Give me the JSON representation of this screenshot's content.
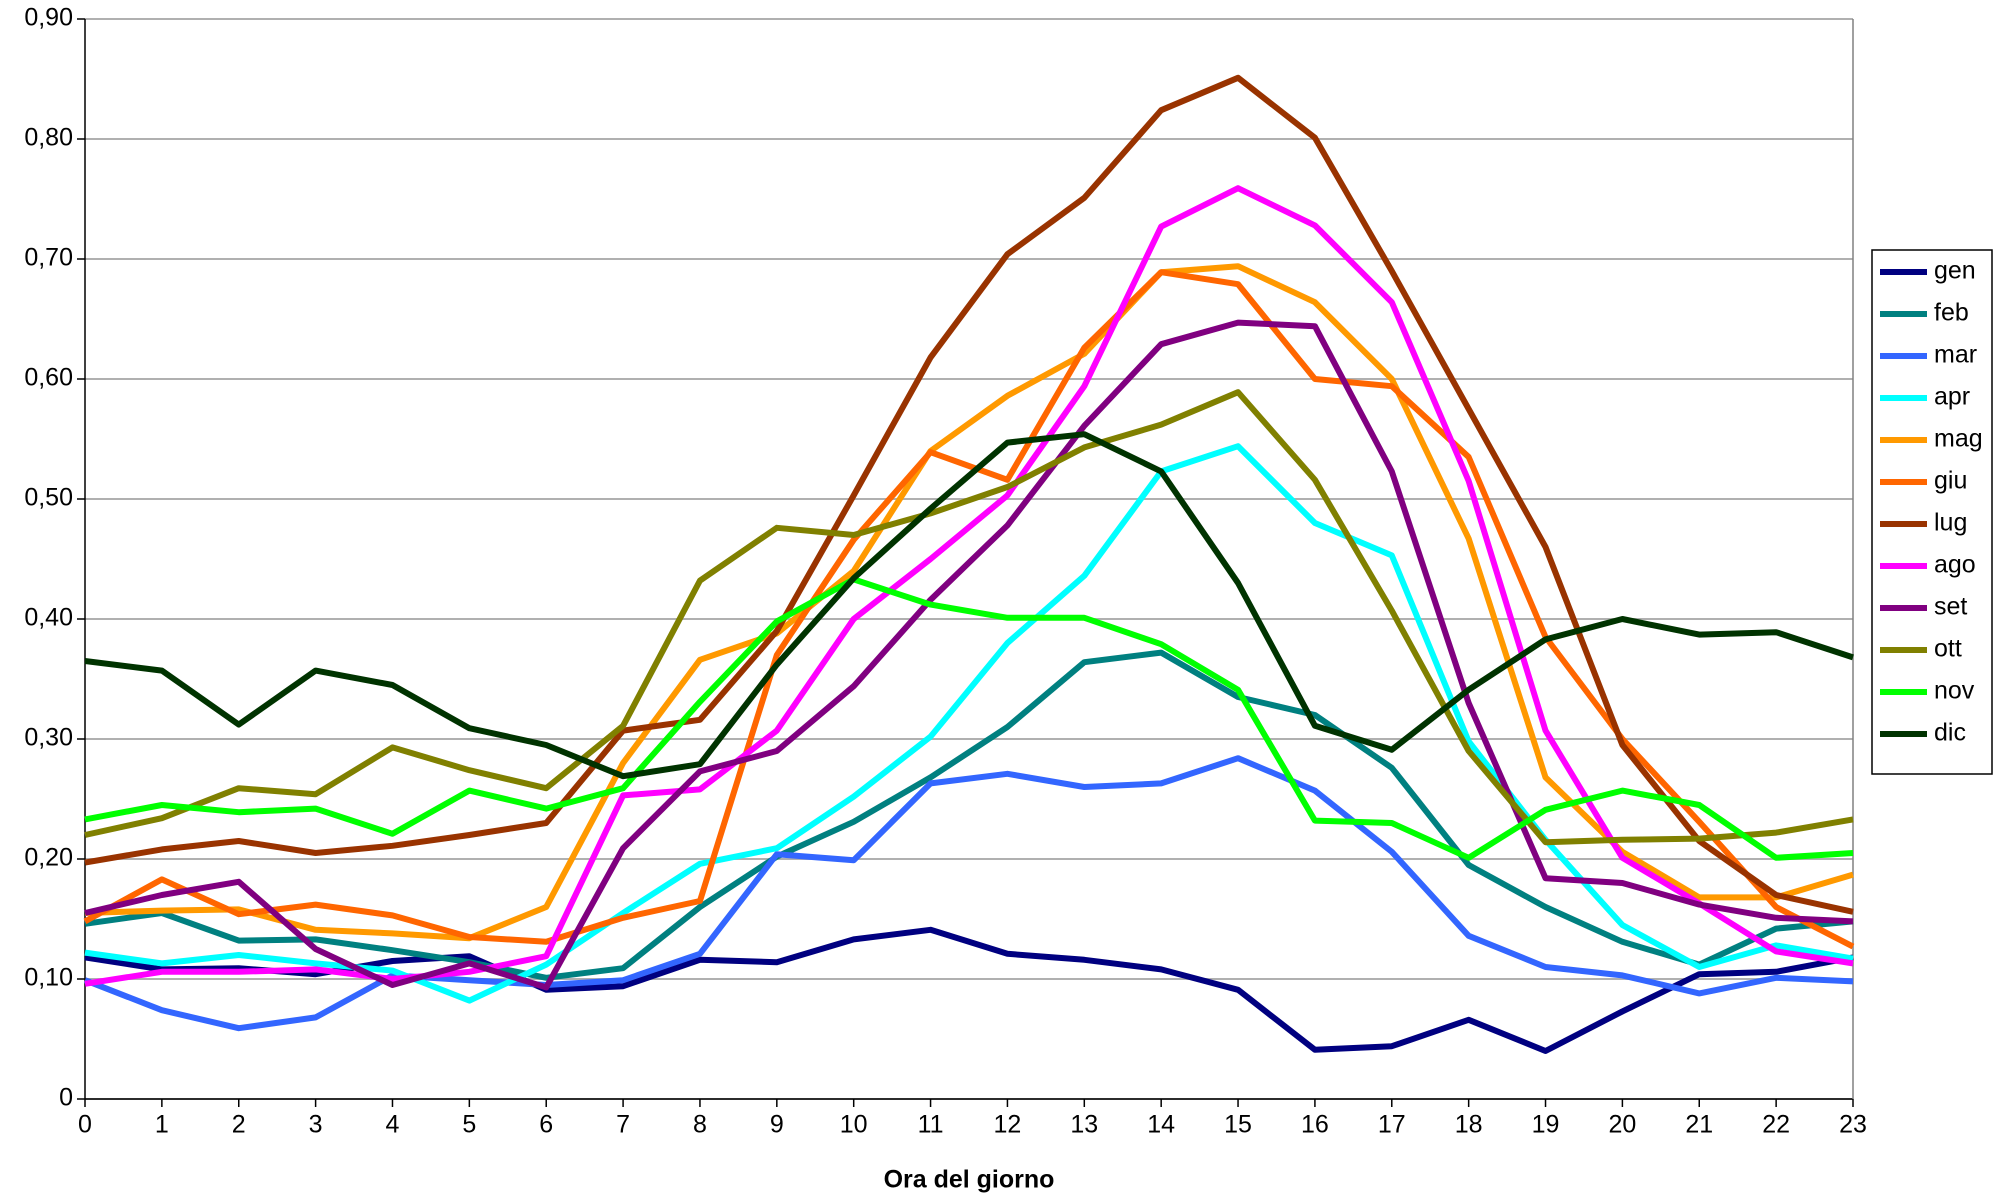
{
  "chart_data": {
    "type": "line",
    "x_label": "Ora del giorno",
    "x": [
      0,
      1,
      2,
      3,
      4,
      5,
      6,
      7,
      8,
      9,
      10,
      11,
      12,
      13,
      14,
      15,
      16,
      17,
      18,
      19,
      20,
      21,
      22,
      23
    ],
    "xlim": [
      0,
      23
    ],
    "xticks": [
      0,
      1,
      2,
      3,
      4,
      5,
      6,
      7,
      8,
      9,
      10,
      11,
      12,
      13,
      14,
      15,
      16,
      17,
      18,
      19,
      20,
      21,
      22,
      23
    ],
    "ylim": [
      0,
      0.9
    ],
    "yticks": [
      0,
      {
        "value": 0.1,
        "label": "0,10"
      },
      {
        "value": 0.2,
        "label": "0,20"
      },
      {
        "value": 0.3,
        "label": "0,30"
      },
      {
        "value": 0.4,
        "label": "0,40"
      },
      {
        "value": 0.5,
        "label": "0,50"
      },
      {
        "value": 0.6,
        "label": "0,60"
      },
      {
        "value": 0.7,
        "label": "0,70"
      },
      {
        "value": 0.8,
        "label": "0,80"
      },
      {
        "value": 0.9,
        "label": "0,90"
      }
    ],
    "grid": true,
    "legend": "right",
    "series": [
      {
        "name": "gen",
        "color": "#000080",
        "values": [
          0.118,
          0.108,
          0.109,
          0.104,
          0.115,
          0.119,
          0.091,
          0.094,
          0.116,
          0.114,
          0.133,
          0.141,
          0.121,
          0.116,
          0.108,
          0.091,
          0.041,
          0.044,
          0.066,
          0.04,
          0.073,
          0.104,
          0.106,
          0.118
        ]
      },
      {
        "name": "feb",
        "color": "#008080",
        "values": [
          0.146,
          0.155,
          0.132,
          0.133,
          0.124,
          0.114,
          0.101,
          0.109,
          0.16,
          0.202,
          0.231,
          0.268,
          0.31,
          0.364,
          0.372,
          0.335,
          0.32,
          0.276,
          0.195,
          0.16,
          0.131,
          0.112,
          0.142,
          0.148
        ]
      },
      {
        "name": "mar",
        "color": "#3366ff",
        "values": [
          0.099,
          0.074,
          0.059,
          0.068,
          0.103,
          0.099,
          0.095,
          0.099,
          0.121,
          0.204,
          0.199,
          0.263,
          0.271,
          0.26,
          0.263,
          0.284,
          0.257,
          0.206,
          0.136,
          0.11,
          0.103,
          0.088,
          0.101,
          0.098
        ]
      },
      {
        "name": "apr",
        "color": "#00ffff",
        "values": [
          0.122,
          0.113,
          0.12,
          0.113,
          0.107,
          0.082,
          0.112,
          0.155,
          0.196,
          0.209,
          0.252,
          0.302,
          0.38,
          0.436,
          0.523,
          0.544,
          0.48,
          0.453,
          0.298,
          0.216,
          0.145,
          0.11,
          0.128,
          0.117
        ]
      },
      {
        "name": "mag",
        "color": "#ff9900",
        "values": [
          0.155,
          0.157,
          0.158,
          0.141,
          0.138,
          0.134,
          0.16,
          0.28,
          0.366,
          0.388,
          0.44,
          0.54,
          0.586,
          0.621,
          0.689,
          0.694,
          0.664,
          0.6,
          0.467,
          0.268,
          0.206,
          0.168,
          0.168,
          0.187
        ]
      },
      {
        "name": "giu",
        "color": "#ff6600",
        "values": [
          0.148,
          0.183,
          0.154,
          0.162,
          0.153,
          0.135,
          0.131,
          0.151,
          0.165,
          0.37,
          0.466,
          0.539,
          0.516,
          0.626,
          0.689,
          0.679,
          0.6,
          0.594,
          0.535,
          0.385,
          0.3,
          0.231,
          0.16,
          0.127
        ]
      },
      {
        "name": "lug",
        "color": "#993300",
        "values": [
          0.197,
          0.208,
          0.215,
          0.205,
          0.211,
          0.22,
          0.23,
          0.307,
          0.316,
          0.39,
          0.503,
          0.618,
          0.704,
          0.751,
          0.824,
          0.851,
          0.801,
          0.69,
          0.575,
          0.46,
          0.295,
          0.215,
          0.17,
          0.156
        ]
      },
      {
        "name": "ago",
        "color": "#ff00ff",
        "values": [
          0.096,
          0.106,
          0.106,
          0.108,
          0.1,
          0.106,
          0.119,
          0.253,
          0.258,
          0.307,
          0.4,
          0.45,
          0.503,
          0.594,
          0.727,
          0.759,
          0.728,
          0.664,
          0.515,
          0.307,
          0.201,
          0.163,
          0.123,
          0.113
        ]
      },
      {
        "name": "set",
        "color": "#800080",
        "values": [
          0.155,
          0.17,
          0.181,
          0.125,
          0.095,
          0.113,
          0.093,
          0.209,
          0.273,
          0.29,
          0.344,
          0.416,
          0.478,
          0.561,
          0.629,
          0.647,
          0.644,
          0.523,
          0.33,
          0.184,
          0.18,
          0.162,
          0.151,
          0.148
        ]
      },
      {
        "name": "ott",
        "color": "#808000",
        "values": [
          0.22,
          0.234,
          0.259,
          0.254,
          0.293,
          0.274,
          0.259,
          0.311,
          0.432,
          0.476,
          0.47,
          0.488,
          0.51,
          0.543,
          0.562,
          0.589,
          0.516,
          0.407,
          0.29,
          0.214,
          0.216,
          0.217,
          0.222,
          0.233
        ]
      },
      {
        "name": "nov",
        "color": "#00ff00",
        "values": [
          0.233,
          0.245,
          0.239,
          0.242,
          0.221,
          0.257,
          0.242,
          0.259,
          0.331,
          0.398,
          0.433,
          0.412,
          0.401,
          0.401,
          0.379,
          0.341,
          0.232,
          0.23,
          0.201,
          0.241,
          0.257,
          0.245,
          0.201,
          0.205
        ]
      },
      {
        "name": "dic",
        "color": "#003300",
        "values": [
          0.365,
          0.357,
          0.312,
          0.357,
          0.345,
          0.309,
          0.295,
          0.269,
          0.279,
          0.362,
          0.434,
          0.492,
          0.547,
          0.554,
          0.523,
          0.43,
          0.311,
          0.291,
          0.341,
          0.383,
          0.4,
          0.387,
          0.389,
          0.368
        ]
      }
    ]
  }
}
